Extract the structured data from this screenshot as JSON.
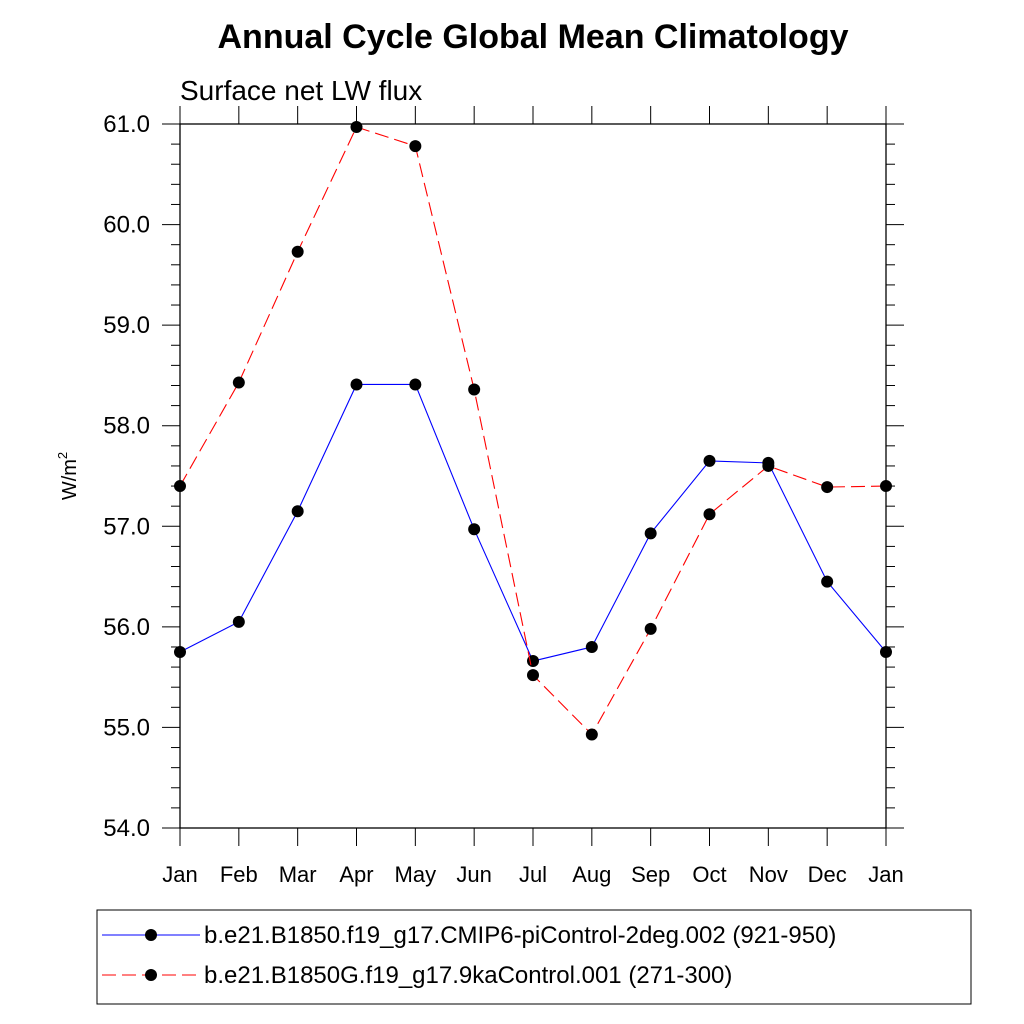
{
  "chart_data": {
    "type": "line",
    "title": "Annual Cycle Global Mean Climatology",
    "subtitle": "Surface net LW flux",
    "ylabel": "W/m",
    "ylabel_superscript": "2",
    "categories": [
      "Jan",
      "Feb",
      "Mar",
      "Apr",
      "May",
      "Jun",
      "Jul",
      "Aug",
      "Sep",
      "Oct",
      "Nov",
      "Dec",
      "Jan"
    ],
    "ylim": [
      54.0,
      61.0
    ],
    "yticks": [
      "54.0",
      "55.0",
      "56.0",
      "57.0",
      "58.0",
      "59.0",
      "60.0",
      "61.0"
    ],
    "legend_position": "bottom",
    "series": [
      {
        "name": "b.e21.B1850.f19_g17.CMIP6-piControl-2deg.002 (921-950)",
        "color": "#0000ff",
        "dashed": false,
        "values": [
          55.75,
          56.05,
          57.15,
          58.41,
          58.41,
          56.97,
          55.66,
          55.8,
          56.93,
          57.65,
          57.63,
          56.45,
          55.75
        ]
      },
      {
        "name": "b.e21.B1850G.f19_g17.9kaControl.001 (271-300)",
        "color": "#ff0000",
        "dashed": true,
        "values": [
          57.4,
          58.43,
          59.73,
          60.97,
          60.78,
          58.36,
          55.52,
          54.93,
          55.98,
          57.12,
          57.6,
          57.39,
          57.4
        ]
      }
    ]
  }
}
